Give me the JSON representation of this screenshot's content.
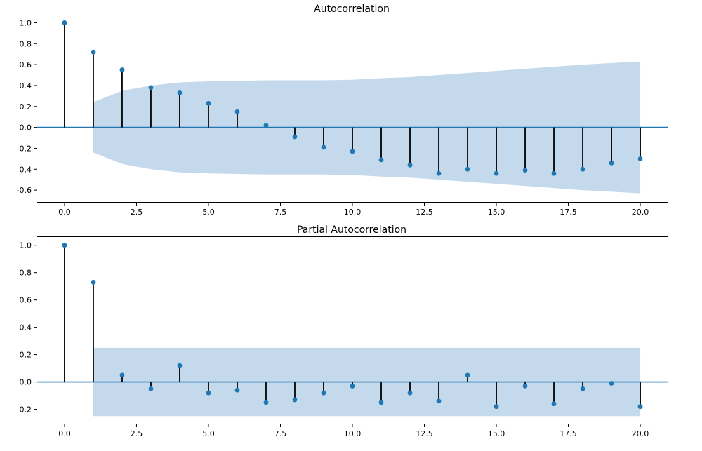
{
  "figure": {
    "background": "#ffffff"
  },
  "colors": {
    "marker": "#1f77b4",
    "stem": "#000000",
    "band": "#c5d9ed",
    "zero_line": "#1f77b4"
  },
  "chart_data": [
    {
      "type": "stem",
      "title": "Autocorrelation",
      "xlim": [
        -0.95,
        20.95
      ],
      "ylim": [
        -0.72,
        1.07
      ],
      "x_ticks": [
        0,
        2.5,
        5,
        7.5,
        10,
        12.5,
        15,
        17.5,
        20
      ],
      "x_tick_labels": [
        "0.0",
        "2.5",
        "5.0",
        "7.5",
        "10.0",
        "12.5",
        "15.0",
        "17.5",
        "20.0"
      ],
      "y_ticks": [
        -0.6,
        -0.4,
        -0.2,
        0.0,
        0.2,
        0.4,
        0.6,
        0.8,
        1.0
      ],
      "y_tick_labels": [
        "-0.6",
        "-0.4",
        "-0.2",
        "0.0",
        "0.2",
        "0.4",
        "0.6",
        "0.8",
        "1.0"
      ],
      "lags": [
        0,
        1,
        2,
        3,
        4,
        5,
        6,
        7,
        8,
        9,
        10,
        11,
        12,
        13,
        14,
        15,
        16,
        17,
        18,
        19,
        20
      ],
      "values": [
        1.0,
        0.72,
        0.55,
        0.38,
        0.33,
        0.23,
        0.15,
        0.02,
        -0.09,
        -0.19,
        -0.23,
        -0.31,
        -0.36,
        -0.44,
        -0.4,
        -0.44,
        -0.41,
        -0.44,
        -0.4,
        -0.34,
        -0.3
      ],
      "confidence_band": {
        "lags": [
          1,
          2,
          3,
          4,
          5,
          6,
          7,
          8,
          9,
          10,
          11,
          12,
          13,
          14,
          15,
          16,
          17,
          18,
          19,
          20
        ],
        "upper": [
          0.24,
          0.35,
          0.4,
          0.43,
          0.44,
          0.445,
          0.45,
          0.45,
          0.45,
          0.455,
          0.47,
          0.48,
          0.5,
          0.52,
          0.54,
          0.56,
          0.58,
          0.6,
          0.615,
          0.63
        ]
      }
    },
    {
      "type": "stem",
      "title": "Partial Autocorrelation",
      "xlim": [
        -0.95,
        20.95
      ],
      "ylim": [
        -0.31,
        1.06
      ],
      "x_ticks": [
        0,
        2.5,
        5,
        7.5,
        10,
        12.5,
        15,
        17.5,
        20
      ],
      "x_tick_labels": [
        "0.0",
        "2.5",
        "5.0",
        "7.5",
        "10.0",
        "12.5",
        "15.0",
        "17.5",
        "20.0"
      ],
      "y_ticks": [
        -0.2,
        0.0,
        0.2,
        0.4,
        0.6,
        0.8,
        1.0
      ],
      "y_tick_labels": [
        "-0.2",
        "0.0",
        "0.2",
        "0.4",
        "0.6",
        "0.8",
        "1.0"
      ],
      "lags": [
        0,
        1,
        2,
        3,
        4,
        5,
        6,
        7,
        8,
        9,
        10,
        11,
        12,
        13,
        14,
        15,
        16,
        17,
        18,
        19,
        20
      ],
      "values": [
        1.0,
        0.73,
        0.05,
        -0.05,
        0.12,
        -0.08,
        -0.06,
        -0.15,
        -0.13,
        -0.08,
        -0.03,
        -0.15,
        -0.08,
        -0.14,
        0.05,
        -0.18,
        -0.03,
        -0.16,
        -0.05,
        -0.01,
        -0.18
      ],
      "confidence_band": {
        "lags": [
          1,
          20
        ],
        "upper": [
          0.25,
          0.25
        ]
      }
    }
  ]
}
